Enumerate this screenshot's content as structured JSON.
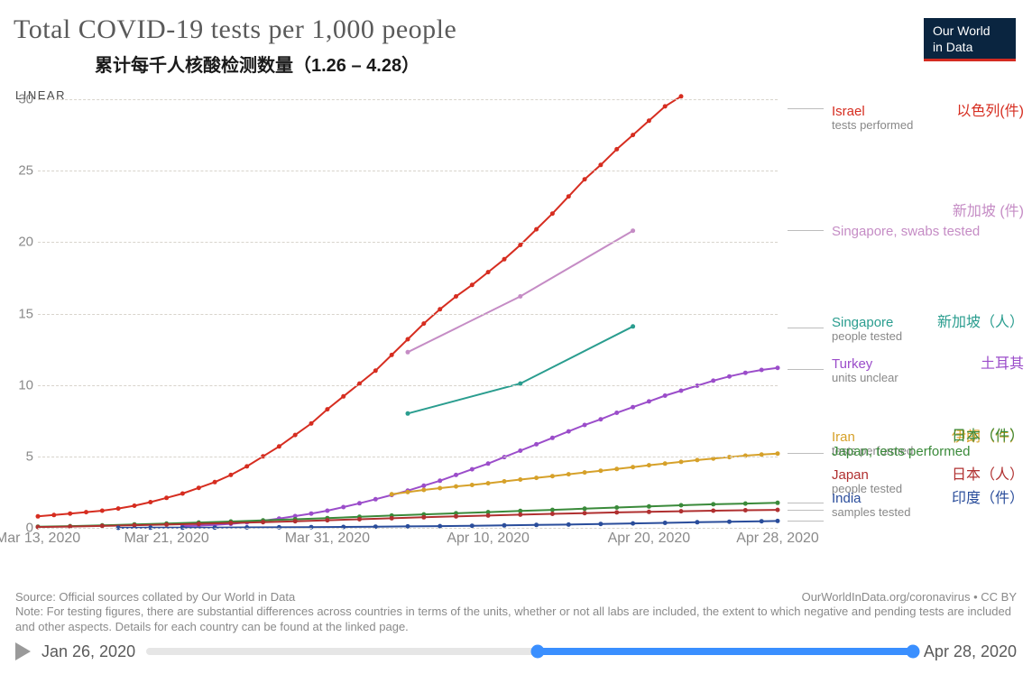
{
  "title": "Total COVID-19 tests per 1,000 people",
  "subtitle_cn": "累计每千人核酸检测数量（1.26 – 4.28）",
  "logo_text_1": "Our World",
  "logo_text_2": "in Data",
  "linear_label": "LINEAR",
  "chart": {
    "type": "line",
    "background_color": "#ffffff",
    "grid_color": "#d8d4cc",
    "axis_text_color": "#8a8a8a",
    "x_domain_days": [
      0,
      46
    ],
    "x_ticks": [
      {
        "day": 0,
        "label": "Mar 13, 2020"
      },
      {
        "day": 8,
        "label": "Mar 21, 2020"
      },
      {
        "day": 18,
        "label": "Mar 31, 2020"
      },
      {
        "day": 28,
        "label": "Apr 10, 2020"
      },
      {
        "day": 38,
        "label": "Apr 20, 2020"
      },
      {
        "day": 46,
        "label": "Apr 28, 2020"
      }
    ],
    "ylim": [
      0,
      30
    ],
    "y_ticks": [
      0,
      5,
      10,
      15,
      20,
      25,
      30
    ],
    "line_width": 2,
    "marker_radius": 2.5,
    "series": [
      {
        "id": "israel",
        "color": "#d62d20",
        "label_en": "Israel",
        "label_cn": "以色列(件)",
        "label_sub": "tests performed",
        "legend_y_frac": 0.011,
        "leader_src_x_frac": 0.012,
        "leader_src_y_frac": 0.02,
        "points": [
          [
            0,
            0.8
          ],
          [
            1,
            0.9
          ],
          [
            2,
            1.0
          ],
          [
            3,
            1.1
          ],
          [
            4,
            1.2
          ],
          [
            5,
            1.35
          ],
          [
            6,
            1.55
          ],
          [
            7,
            1.8
          ],
          [
            8,
            2.1
          ],
          [
            9,
            2.4
          ],
          [
            10,
            2.8
          ],
          [
            11,
            3.2
          ],
          [
            12,
            3.7
          ],
          [
            13,
            4.3
          ],
          [
            14,
            5.0
          ],
          [
            15,
            5.7
          ],
          [
            16,
            6.5
          ],
          [
            17,
            7.3
          ],
          [
            18,
            8.3
          ],
          [
            19,
            9.2
          ],
          [
            20,
            10.1
          ],
          [
            21,
            11.0
          ],
          [
            22,
            12.1
          ],
          [
            23,
            13.2
          ],
          [
            24,
            14.3
          ],
          [
            25,
            15.3
          ],
          [
            26,
            16.2
          ],
          [
            27,
            17.0
          ],
          [
            28,
            17.9
          ],
          [
            29,
            18.8
          ],
          [
            30,
            19.8
          ],
          [
            31,
            20.9
          ],
          [
            32,
            22.0
          ],
          [
            33,
            23.2
          ],
          [
            34,
            24.4
          ],
          [
            35,
            25.4
          ],
          [
            36,
            26.5
          ],
          [
            37,
            27.5
          ],
          [
            38,
            28.5
          ],
          [
            39,
            29.5
          ],
          [
            40,
            30.2
          ]
        ]
      },
      {
        "id": "singapore_swabs",
        "color": "#c58cc5",
        "label_en": "Singapore, swabs tested",
        "label_cn": "新加坡 (件)",
        "label_sub": "",
        "legend_y_frac": 0.29,
        "leader_src_x_frac": 0.012,
        "leader_src_y_frac": 0.306,
        "points": [
          [
            23,
            12.3
          ],
          [
            30,
            16.2
          ],
          [
            37,
            20.8
          ]
        ]
      },
      {
        "id": "singapore_people",
        "color": "#2a9d8f",
        "label_en": "Singapore",
        "label_cn": "新加坡（人）",
        "label_sub": "people tested",
        "legend_y_frac": 0.503,
        "leader_src_x_frac": 0.012,
        "leader_src_y_frac": 0.532,
        "points": [
          [
            23,
            8.0
          ],
          [
            30,
            10.1
          ],
          [
            37,
            14.1
          ]
        ]
      },
      {
        "id": "turkey",
        "color": "#9b4dca",
        "label_en": "Turkey",
        "label_cn": "土耳其",
        "label_sub": "units unclear",
        "legend_y_frac": 0.6,
        "leader_src_x_frac": 0.012,
        "leader_src_y_frac": 0.629,
        "points": [
          [
            9,
            0.12
          ],
          [
            10,
            0.16
          ],
          [
            11,
            0.2
          ],
          [
            12,
            0.28
          ],
          [
            13,
            0.38
          ],
          [
            14,
            0.5
          ],
          [
            15,
            0.65
          ],
          [
            16,
            0.82
          ],
          [
            17,
            1.0
          ],
          [
            18,
            1.2
          ],
          [
            19,
            1.45
          ],
          [
            20,
            1.72
          ],
          [
            21,
            2.0
          ],
          [
            22,
            2.3
          ],
          [
            23,
            2.6
          ],
          [
            24,
            2.95
          ],
          [
            25,
            3.3
          ],
          [
            26,
            3.7
          ],
          [
            27,
            4.1
          ],
          [
            28,
            4.5
          ],
          [
            29,
            4.95
          ],
          [
            30,
            5.4
          ],
          [
            31,
            5.85
          ],
          [
            32,
            6.3
          ],
          [
            33,
            6.75
          ],
          [
            34,
            7.2
          ],
          [
            35,
            7.6
          ],
          [
            36,
            8.05
          ],
          [
            37,
            8.45
          ],
          [
            38,
            8.85
          ],
          [
            39,
            9.25
          ],
          [
            40,
            9.6
          ],
          [
            41,
            9.95
          ],
          [
            42,
            10.3
          ],
          [
            43,
            10.6
          ],
          [
            44,
            10.85
          ],
          [
            45,
            11.05
          ],
          [
            46,
            11.2
          ]
        ]
      },
      {
        "id": "iran",
        "color": "#d6a12a",
        "label_en": "Iran",
        "label_cn": "伊朗（件）",
        "label_sub": "tests performed",
        "legend_y_frac": 0.77,
        "leader_src_x_frac": 0.012,
        "leader_src_y_frac": 0.825,
        "points": [
          [
            22,
            2.35
          ],
          [
            23,
            2.5
          ],
          [
            24,
            2.65
          ],
          [
            25,
            2.78
          ],
          [
            26,
            2.9
          ],
          [
            27,
            3.0
          ],
          [
            28,
            3.12
          ],
          [
            29,
            3.25
          ],
          [
            30,
            3.38
          ],
          [
            31,
            3.5
          ],
          [
            32,
            3.62
          ],
          [
            33,
            3.75
          ],
          [
            34,
            3.88
          ],
          [
            35,
            4.0
          ],
          [
            36,
            4.12
          ],
          [
            37,
            4.25
          ],
          [
            38,
            4.38
          ],
          [
            39,
            4.5
          ],
          [
            40,
            4.62
          ],
          [
            41,
            4.74
          ],
          [
            42,
            4.85
          ],
          [
            43,
            4.95
          ],
          [
            44,
            5.05
          ],
          [
            45,
            5.13
          ],
          [
            46,
            5.2
          ]
        ]
      },
      {
        "id": "japan_tests",
        "color": "#3a8a3a",
        "label_en": "Japan, tests performed",
        "label_cn": "日本（件）",
        "label_sub": "",
        "legend_y_frac": 0.805,
        "legend_cn_y_frac": 0.768,
        "leader_src_x_frac": 0.012,
        "leader_src_y_frac": 0.942,
        "points": [
          [
            0,
            0.08
          ],
          [
            2,
            0.12
          ],
          [
            4,
            0.17
          ],
          [
            6,
            0.24
          ],
          [
            8,
            0.3
          ],
          [
            10,
            0.37
          ],
          [
            12,
            0.44
          ],
          [
            14,
            0.52
          ],
          [
            16,
            0.6
          ],
          [
            18,
            0.68
          ],
          [
            20,
            0.77
          ],
          [
            22,
            0.86
          ],
          [
            24,
            0.94
          ],
          [
            26,
            1.02
          ],
          [
            28,
            1.1
          ],
          [
            30,
            1.18
          ],
          [
            32,
            1.26
          ],
          [
            34,
            1.34
          ],
          [
            36,
            1.42
          ],
          [
            38,
            1.5
          ],
          [
            40,
            1.58
          ],
          [
            42,
            1.65
          ],
          [
            44,
            1.7
          ],
          [
            46,
            1.75
          ]
        ]
      },
      {
        "id": "japan_people",
        "color": "#b03030",
        "label_en": "Japan",
        "label_cn": "日本（人）",
        "label_sub": "people tested",
        "legend_y_frac": 0.859,
        "leader_src_x_frac": 0.012,
        "leader_src_y_frac": 0.958,
        "points": [
          [
            0,
            0.06
          ],
          [
            2,
            0.09
          ],
          [
            4,
            0.13
          ],
          [
            6,
            0.18
          ],
          [
            8,
            0.23
          ],
          [
            10,
            0.28
          ],
          [
            12,
            0.34
          ],
          [
            14,
            0.4
          ],
          [
            16,
            0.46
          ],
          [
            18,
            0.53
          ],
          [
            20,
            0.6
          ],
          [
            22,
            0.67
          ],
          [
            24,
            0.74
          ],
          [
            26,
            0.8
          ],
          [
            28,
            0.86
          ],
          [
            30,
            0.92
          ],
          [
            32,
            0.98
          ],
          [
            34,
            1.03
          ],
          [
            36,
            1.08
          ],
          [
            38,
            1.12
          ],
          [
            40,
            1.16
          ],
          [
            42,
            1.2
          ],
          [
            44,
            1.23
          ],
          [
            46,
            1.26
          ]
        ]
      },
      {
        "id": "india",
        "color": "#2a4d9b",
        "label_en": "India",
        "label_cn": "印度（件）",
        "label_sub": "samples tested",
        "legend_y_frac": 0.914,
        "leader_src_x_frac": 0.012,
        "leader_src_y_frac": 0.984,
        "points": [
          [
            5,
            0.0
          ],
          [
            7,
            0.01
          ],
          [
            9,
            0.015
          ],
          [
            11,
            0.022
          ],
          [
            13,
            0.03
          ],
          [
            15,
            0.04
          ],
          [
            17,
            0.052
          ],
          [
            19,
            0.065
          ],
          [
            21,
            0.08
          ],
          [
            23,
            0.1
          ],
          [
            25,
            0.12
          ],
          [
            27,
            0.145
          ],
          [
            29,
            0.17
          ],
          [
            31,
            0.2
          ],
          [
            33,
            0.23
          ],
          [
            35,
            0.27
          ],
          [
            37,
            0.31
          ],
          [
            39,
            0.35
          ],
          [
            41,
            0.39
          ],
          [
            43,
            0.43
          ],
          [
            45,
            0.46
          ],
          [
            46,
            0.48
          ]
        ]
      }
    ]
  },
  "footer": {
    "source_line": "Source: Official sources collated by Our World in Data",
    "attribution": "OurWorldInData.org/coronavirus • CC BY",
    "note": "Note: For testing figures, there are substantial differences across countries in terms of the units, whether or not all labs are included, the extent to which negative and pending tests are included and other aspects. Details for each country can be found at the linked page."
  },
  "timeline": {
    "start_label": "Jan 26, 2020",
    "end_label": "Apr 28, 2020",
    "selected_start_frac": 0.51,
    "selected_end_frac": 1.0,
    "track_bg": "#e6e6e6",
    "range_color": "#3a8fff"
  }
}
